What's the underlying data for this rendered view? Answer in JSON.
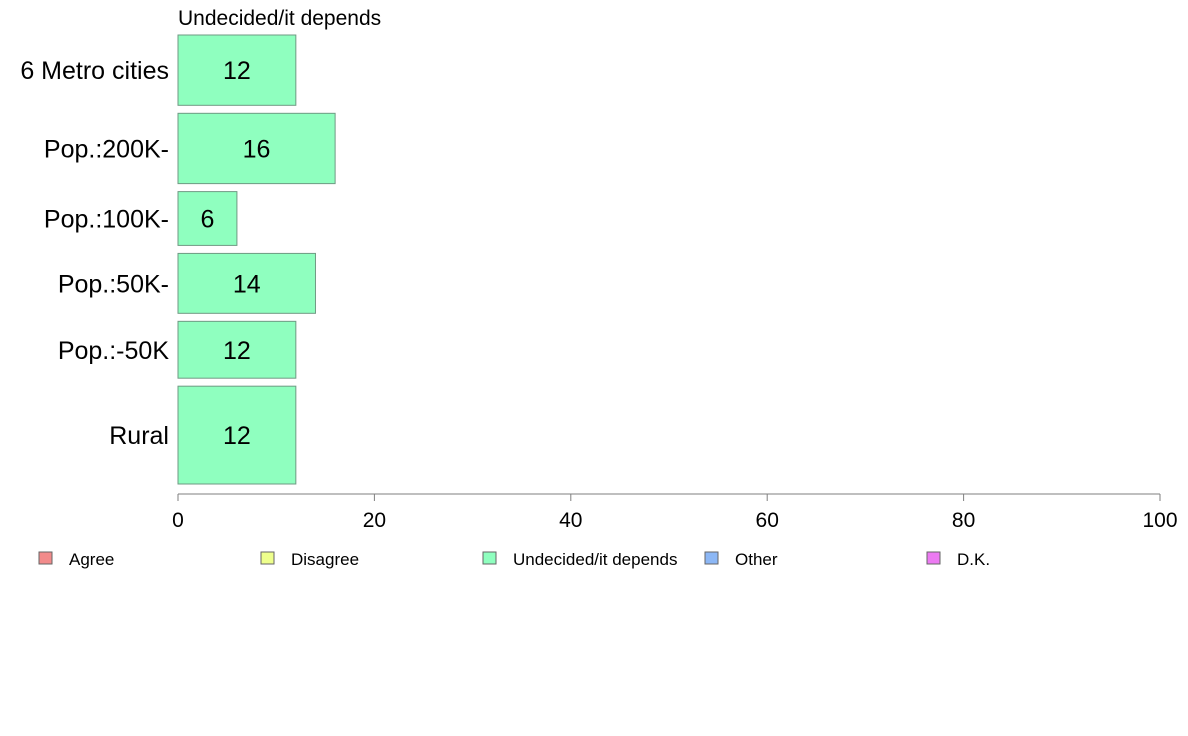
{
  "chart_data": {
    "type": "bar",
    "orientation": "horizontal",
    "title": "Undecided/it depends",
    "categories": [
      "6 Metro cities",
      "Pop.:200K-",
      "Pop.:100K-",
      "Pop.:50K-",
      "Pop.:-50K",
      "Rural"
    ],
    "series": [
      {
        "name": "Undecided/it depends",
        "values": [
          12,
          16,
          6,
          14,
          12,
          12
        ],
        "color": "#8fffbf"
      }
    ],
    "category_weights": [
      1.15,
      1.15,
      0.88,
      0.98,
      0.93,
      1.6
    ],
    "xlim": [
      0,
      100
    ],
    "xticks": [
      0,
      20,
      40,
      60,
      80,
      100
    ],
    "grid": false,
    "legend": {
      "placement": "bottom",
      "items": [
        {
          "label": "Agree",
          "color": "#f28b8b"
        },
        {
          "label": "Disagree",
          "color": "#eeff8c"
        },
        {
          "label": "Undecided/it depends",
          "color": "#8fffbf"
        },
        {
          "label": "Other",
          "color": "#8cb7f5"
        },
        {
          "label": "D.K.",
          "color": "#ec7af2"
        }
      ]
    }
  }
}
